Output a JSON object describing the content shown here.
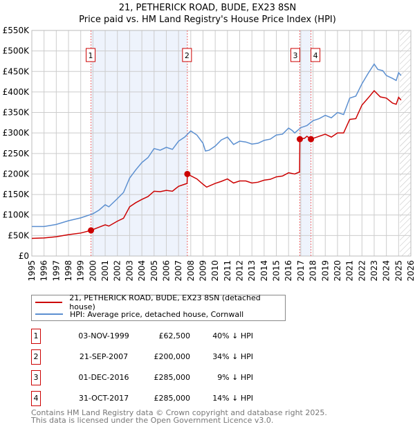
{
  "chart_data": {
    "type": "line",
    "title": "21, PETHERICK ROAD, BUDE, EX23 8SN",
    "subtitle": "Price paid vs. HM Land Registry's House Price Index (HPI)",
    "xlim": [
      1995,
      2026
    ],
    "ylim": [
      0,
      550000
    ],
    "x_ticks": [
      "1995",
      "1996",
      "1997",
      "1998",
      "1999",
      "2000",
      "2001",
      "2002",
      "2003",
      "2004",
      "2005",
      "2006",
      "2007",
      "2008",
      "2009",
      "2010",
      "2011",
      "2012",
      "2013",
      "2014",
      "2015",
      "2016",
      "2017",
      "2018",
      "2019",
      "2020",
      "2021",
      "2022",
      "2023",
      "2024",
      "2025",
      "2026"
    ],
    "y_ticks": [
      {
        "v": 0,
        "label": "£0"
      },
      {
        "v": 50000,
        "label": "£50K"
      },
      {
        "v": 100000,
        "label": "£100K"
      },
      {
        "v": 150000,
        "label": "£150K"
      },
      {
        "v": 200000,
        "label": "£200K"
      },
      {
        "v": 250000,
        "label": "£250K"
      },
      {
        "v": 300000,
        "label": "£300K"
      },
      {
        "v": 350000,
        "label": "£350K"
      },
      {
        "v": 400000,
        "label": "£400K"
      },
      {
        "v": 450000,
        "label": "£450K"
      },
      {
        "v": 500000,
        "label": "£500K"
      },
      {
        "v": 550000,
        "label": "£550K"
      }
    ],
    "grid": true,
    "series": [
      {
        "name": "21, PETHERICK ROAD, BUDE, EX23 8SN (detached house)",
        "color": "#cc0000",
        "x": [
          1995,
          1996,
          1997,
          1998,
          1999,
          1999.84,
          2000.3,
          2001,
          2001.3,
          2002,
          2002.5,
          2003,
          2003.5,
          2004,
          2004.5,
          2005,
          2005.5,
          2006,
          2006.5,
          2007,
          2007.5,
          2007.7,
          2007.72,
          2008.5,
          2009,
          2009.3,
          2010,
          2010.5,
          2011,
          2011.5,
          2012,
          2012.5,
          2013,
          2013.5,
          2014,
          2014.5,
          2015,
          2015.5,
          2016,
          2016.5,
          2016.9,
          2016.92,
          2017.3,
          2017.5,
          2017.83,
          2018.5,
          2019,
          2019.5,
          2020,
          2020.5,
          2021,
          2021.5,
          2022,
          2022.5,
          2023,
          2023.5,
          2024,
          2024.5,
          2024.8,
          2025,
          2025.2
        ],
        "y": [
          43000,
          44000,
          47000,
          52000,
          56000,
          62500,
          68000,
          76000,
          73000,
          85000,
          92000,
          120000,
          130000,
          138000,
          145000,
          158000,
          157000,
          160000,
          158000,
          170000,
          175000,
          177000,
          200000,
          188000,
          175000,
          168000,
          177000,
          182000,
          188000,
          178000,
          183000,
          183000,
          178000,
          180000,
          185000,
          187000,
          193000,
          195000,
          203000,
          200000,
          205000,
          285000,
          287000,
          292000,
          285000,
          292000,
          297000,
          290000,
          300000,
          300000,
          333000,
          335000,
          368000,
          385000,
          403000,
          388000,
          385000,
          373000,
          370000,
          387000,
          380000
        ]
      },
      {
        "name": "HPI: Average price, detached house, Cornwall",
        "color": "#5b8fd0",
        "x": [
          1995,
          1996,
          1997,
          1998,
          1999,
          2000,
          2000.5,
          2001,
          2001.3,
          2002,
          2002.5,
          2003,
          2003.5,
          2004,
          2004.5,
          2005,
          2005.5,
          2006,
          2006.5,
          2007,
          2007.5,
          2008,
          2008.5,
          2009,
          2009.2,
          2009.5,
          2010,
          2010.5,
          2011,
          2011.5,
          2012,
          2012.5,
          2013,
          2013.5,
          2014,
          2014.5,
          2015,
          2015.5,
          2016,
          2016.3,
          2016.5,
          2017,
          2017.5,
          2018,
          2018.5,
          2019,
          2019.5,
          2020,
          2020.5,
          2021,
          2021.5,
          2022,
          2022.5,
          2023,
          2023.3,
          2023.7,
          2024,
          2024.5,
          2024.8,
          2025,
          2025.2
        ],
        "y": [
          72000,
          72000,
          77000,
          86000,
          93000,
          103000,
          112000,
          125000,
          120000,
          140000,
          155000,
          190000,
          210000,
          228000,
          240000,
          262000,
          258000,
          265000,
          260000,
          280000,
          290000,
          305000,
          295000,
          275000,
          256000,
          258000,
          268000,
          283000,
          290000,
          272000,
          280000,
          278000,
          273000,
          275000,
          282000,
          285000,
          295000,
          297000,
          312000,
          306000,
          300000,
          313000,
          318000,
          330000,
          335000,
          343000,
          337000,
          350000,
          345000,
          385000,
          390000,
          420000,
          445000,
          468000,
          455000,
          452000,
          440000,
          433000,
          428000,
          447000,
          440000
        ]
      }
    ],
    "sales": [
      {
        "num": "1",
        "x": 1999.84,
        "y": 62500,
        "date": "03-NOV-1999",
        "price": "£62,500",
        "hpi": "40% ↓ HPI"
      },
      {
        "num": "2",
        "x": 2007.72,
        "y": 200000,
        "date": "21-SEP-2007",
        "price": "£200,000",
        "hpi": "34% ↓ HPI"
      },
      {
        "num": "3",
        "x": 2016.92,
        "y": 285000,
        "date": "01-DEC-2016",
        "price": "£285,000",
        "hpi": "9% ↓ HPI"
      },
      {
        "num": "4",
        "x": 2017.83,
        "y": 285000,
        "date": "31-OCT-2017",
        "price": "£285,000",
        "hpi": "14% ↓ HPI"
      }
    ],
    "shaded_ranges": [
      [
        1999.84,
        2007.72
      ],
      [
        2016.92,
        2017.83
      ]
    ],
    "forecast_from": 2025.1,
    "legend_position": "below"
  },
  "footer": {
    "line1": "Contains HM Land Registry data © Crown copyright and database right 2025.",
    "line2": "This data is licensed under the Open Government Licence v3.0."
  }
}
